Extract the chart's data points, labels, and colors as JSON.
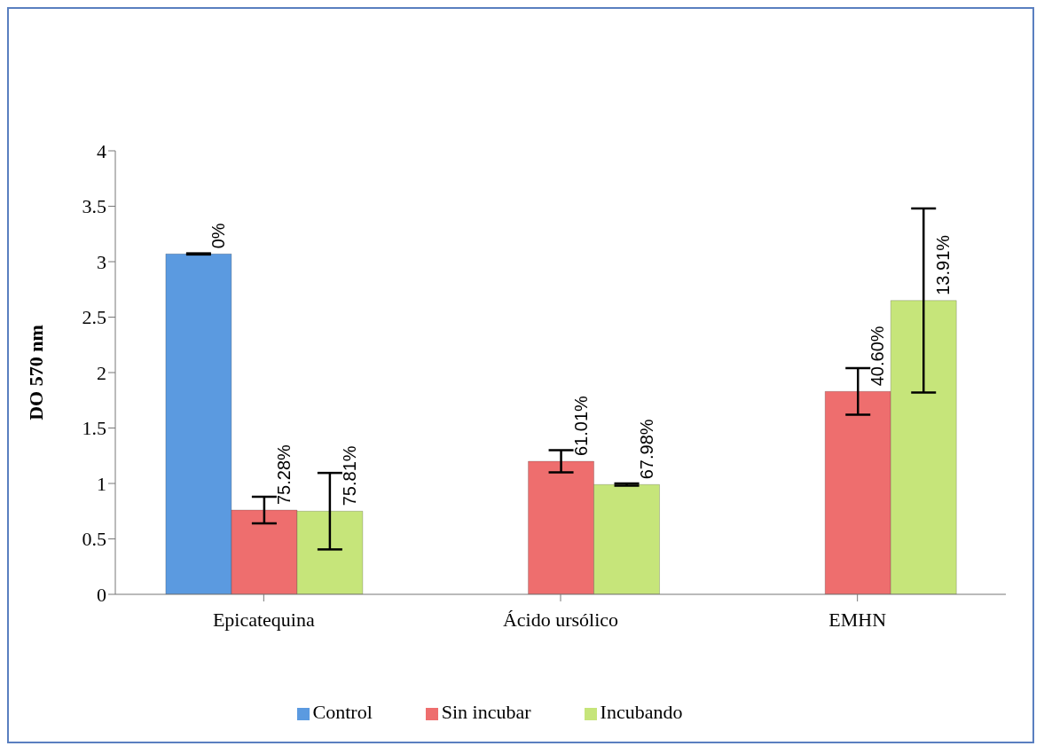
{
  "chart_data": {
    "type": "bar",
    "ylabel": "DO 570 nm",
    "categories": [
      "Epicatequina",
      "Ácido ursólico",
      "EMHN"
    ],
    "series": [
      {
        "name": "Control",
        "color": "#5b9ae0",
        "values": [
          3.07,
          null,
          null
        ],
        "errors": [
          0.005,
          null,
          null
        ]
      },
      {
        "name": "Sin incubar",
        "color": "#ee6e6e",
        "values": [
          0.76,
          1.2,
          1.83
        ],
        "errors": [
          0.12,
          0.1,
          0.21
        ]
      },
      {
        "name": "Incubando",
        "color": "#c6e57a",
        "values": [
          0.75,
          0.99,
          2.65
        ],
        "errors": [
          0.345,
          0.01,
          0.83
        ]
      }
    ],
    "annotations": [
      "0%",
      "75.28%",
      "75.81%",
      "61.01%",
      "67.98%",
      "40.60%",
      "13.91%"
    ],
    "ylim": [
      0,
      4
    ],
    "yticks": [
      0,
      0.5,
      1,
      1.5,
      2,
      2.5,
      3,
      3.5,
      4
    ],
    "grid": false,
    "legend": "bottom"
  }
}
